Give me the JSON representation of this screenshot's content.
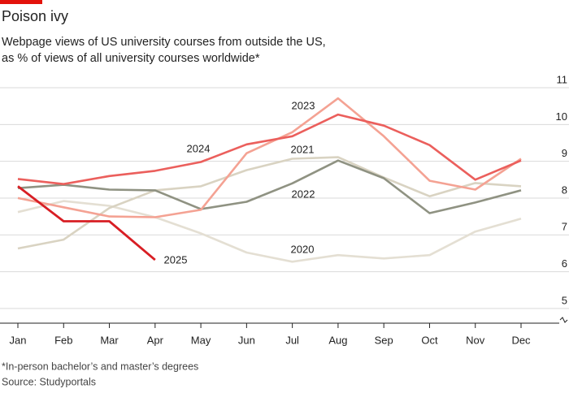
{
  "chart_data": {
    "type": "line",
    "title": "Poison ivy",
    "subtitle": [
      "Webpage views of US university courses from outside the US,",
      "as % of views of all university courses worldwide*"
    ],
    "footnote": "*In-person bachelor’s and master’s degrees",
    "source": "Source: Studyportals",
    "categories": [
      "Jan",
      "Feb",
      "Mar",
      "Apr",
      "May",
      "Jun",
      "Jul",
      "Aug",
      "Sep",
      "Oct",
      "Nov",
      "Dec"
    ],
    "ylim": [
      4.6,
      11
    ],
    "yticks": [
      5,
      6,
      7,
      8,
      9,
      10,
      11
    ],
    "grid": true,
    "series": [
      {
        "name": "2020",
        "color": "#e4dfd3",
        "values": [
          7.62,
          7.92,
          7.79,
          7.48,
          7.04,
          6.52,
          6.27,
          6.45,
          6.36,
          6.45,
          7.09,
          7.44
        ]
      },
      {
        "name": "2021",
        "color": "#d9d3c2",
        "values": [
          6.63,
          6.87,
          7.73,
          8.21,
          8.32,
          8.76,
          9.07,
          9.11,
          8.56,
          8.05,
          8.41,
          8.32
        ]
      },
      {
        "name": "2022",
        "color": "#8f9282",
        "values": [
          8.27,
          8.36,
          8.23,
          8.21,
          7.7,
          7.9,
          8.4,
          9.02,
          8.54,
          7.59,
          7.88,
          8.21
        ]
      },
      {
        "name": "2023",
        "color": "#f4a293",
        "values": [
          8.0,
          7.75,
          7.5,
          7.48,
          7.68,
          9.22,
          9.79,
          10.71,
          9.68,
          8.47,
          8.23,
          9.07
        ]
      },
      {
        "name": "2024",
        "color": "#eb5f5c",
        "values": [
          8.52,
          8.38,
          8.6,
          8.74,
          8.98,
          9.46,
          9.68,
          10.27,
          9.97,
          9.44,
          8.5,
          9.02
        ]
      },
      {
        "name": "2025",
        "color": "#d81e24",
        "values": [
          8.32,
          7.37,
          7.37,
          6.32,
          null,
          null,
          null,
          null,
          null,
          null,
          null,
          null
        ]
      }
    ]
  }
}
